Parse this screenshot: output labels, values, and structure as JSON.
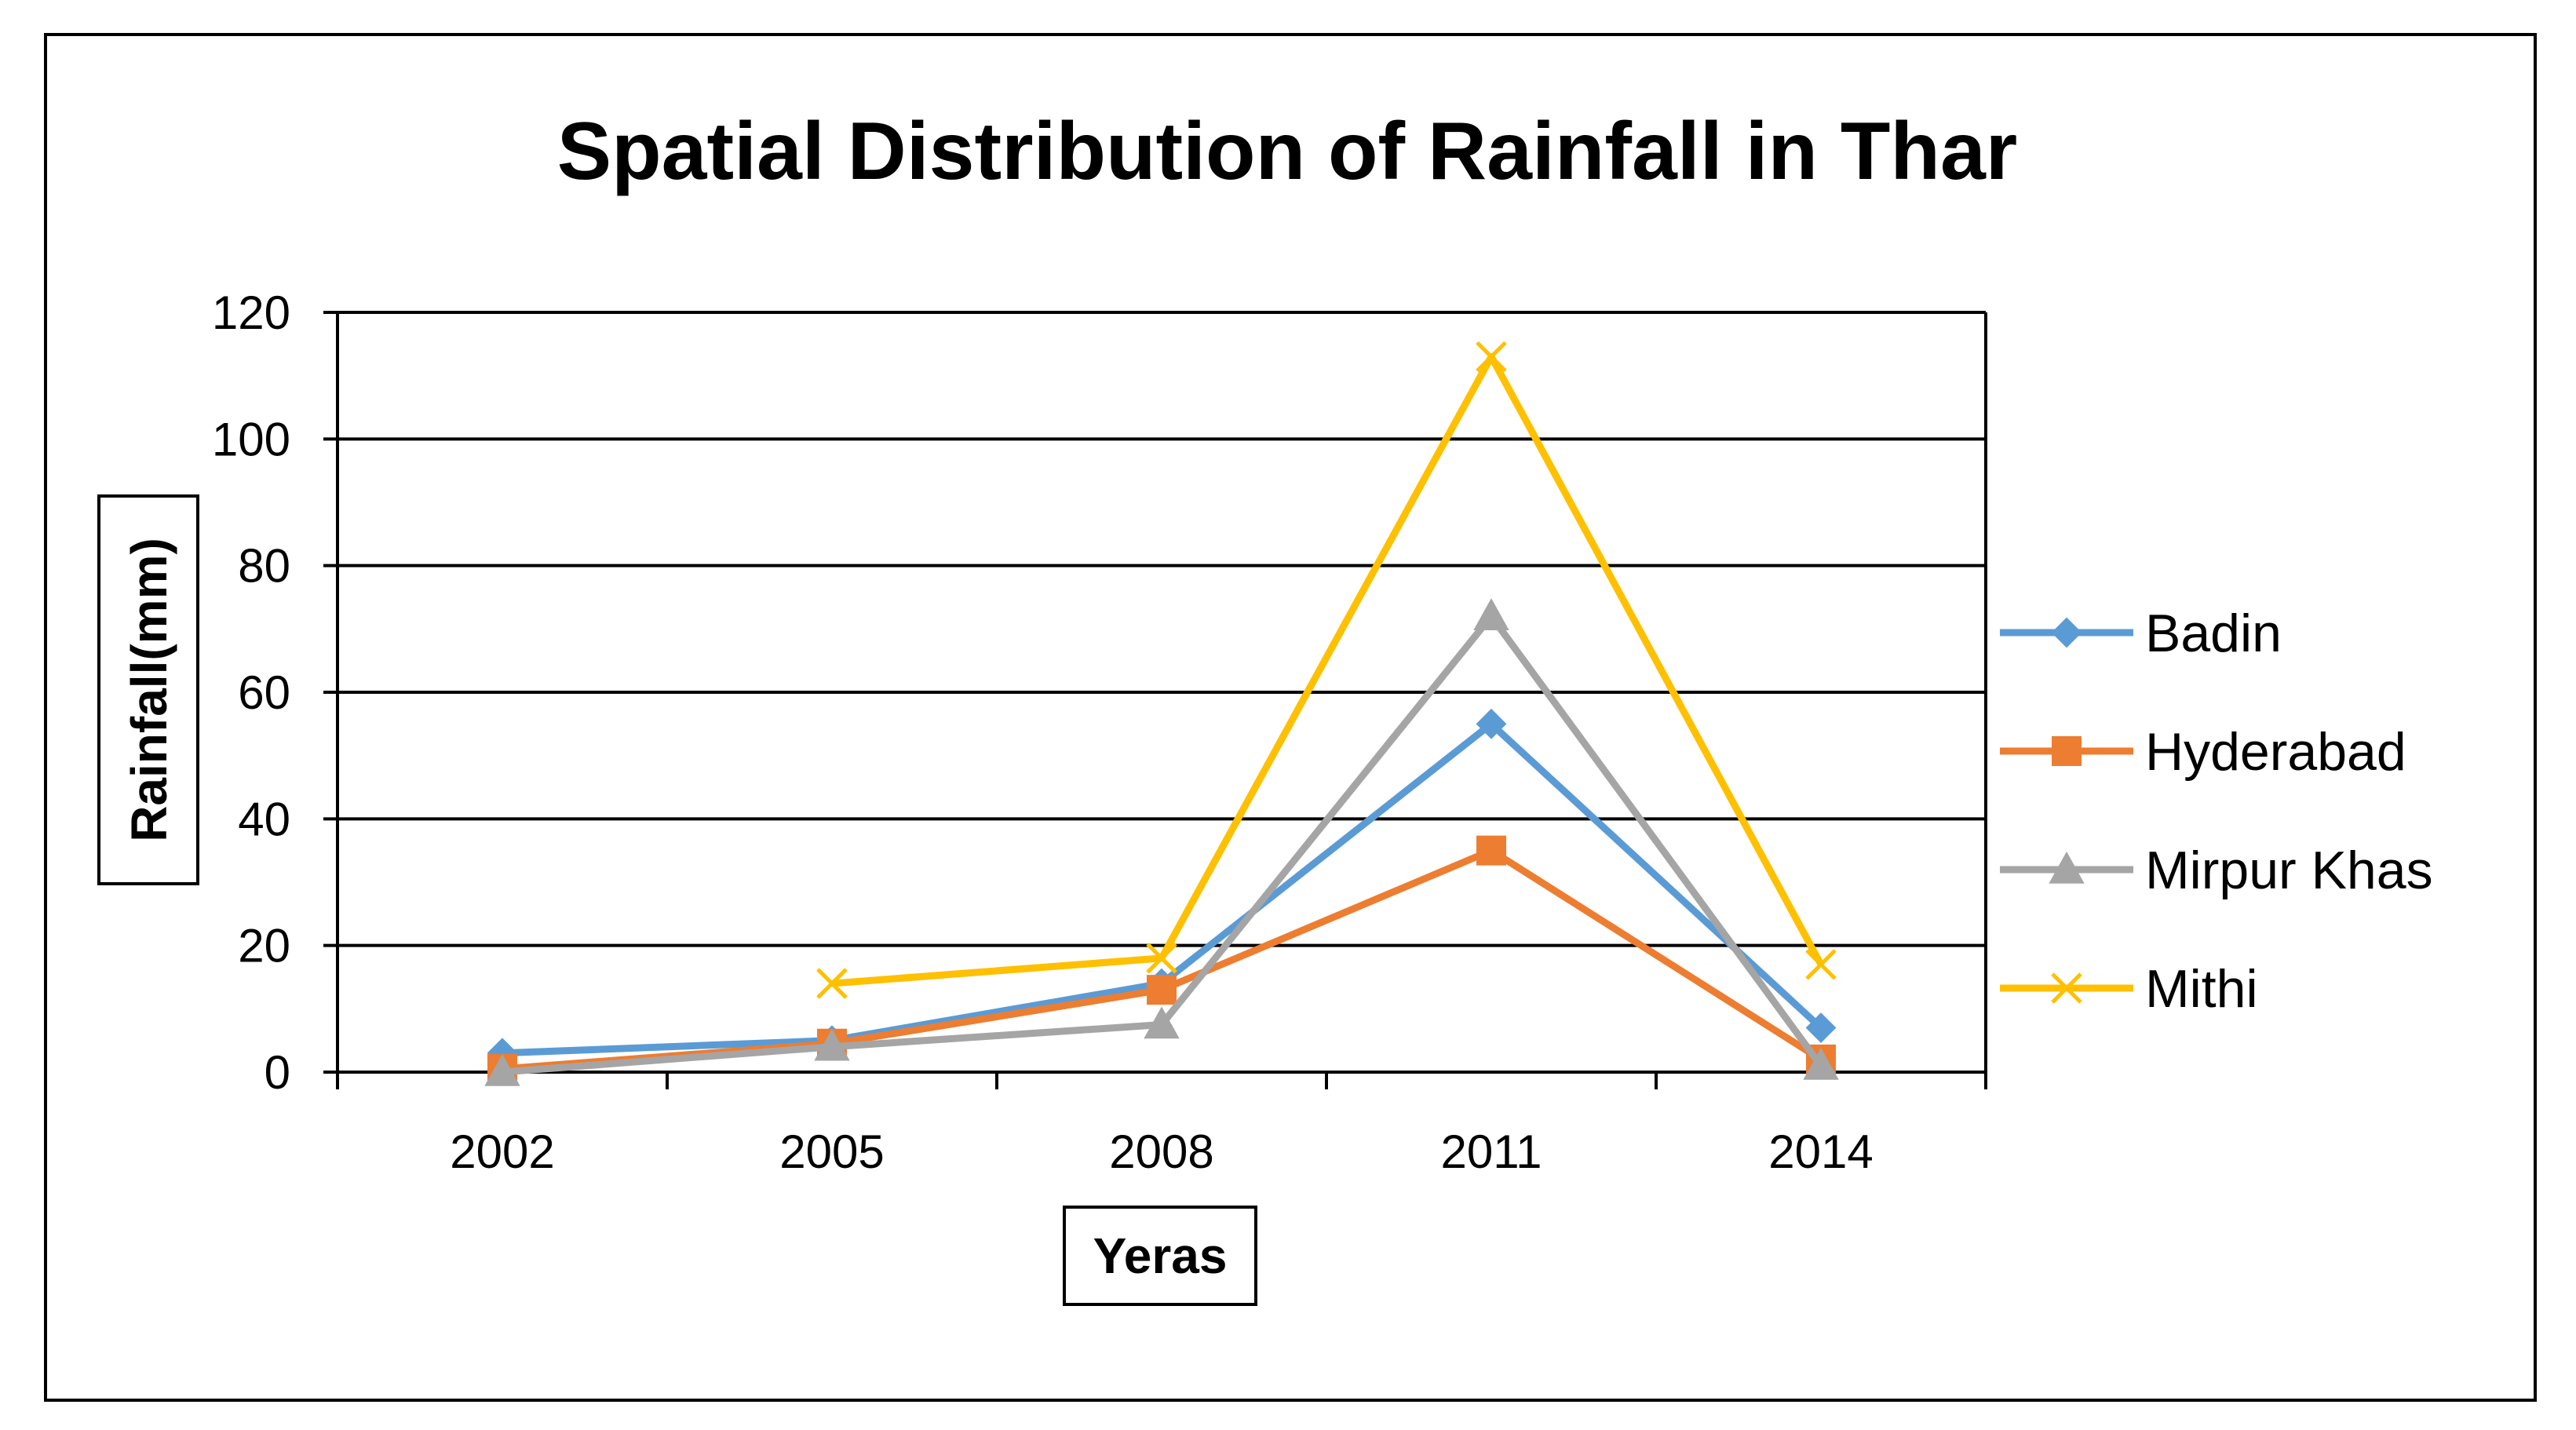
{
  "chart_data": {
    "type": "line",
    "title": "Spatial Distribution of Rainfall in Thar",
    "xlabel": "Yeras",
    "ylabel": "Rainfall(mm)",
    "categories": [
      "2002",
      "2005",
      "2008",
      "2011",
      "2014"
    ],
    "ylim": [
      0,
      120
    ],
    "yticks": [
      0,
      20,
      40,
      60,
      80,
      100,
      120
    ],
    "grid": true,
    "legend_position": "right",
    "series": [
      {
        "name": "Badin",
        "color": "#5B9BD5",
        "marker": "diamond",
        "values": [
          3,
          5,
          14,
          55,
          7
        ]
      },
      {
        "name": "Hyderabad",
        "color": "#ED7D31",
        "marker": "square",
        "values": [
          0.5,
          4.5,
          13,
          35,
          2
        ]
      },
      {
        "name": "Mirpur Khas",
        "color": "#A5A5A5",
        "marker": "triangle",
        "values": [
          0,
          4,
          7.5,
          72,
          1
        ]
      },
      {
        "name": "Mithi",
        "color": "#FFC000",
        "marker": "x",
        "values": [
          null,
          14,
          18,
          113,
          17
        ]
      }
    ]
  }
}
